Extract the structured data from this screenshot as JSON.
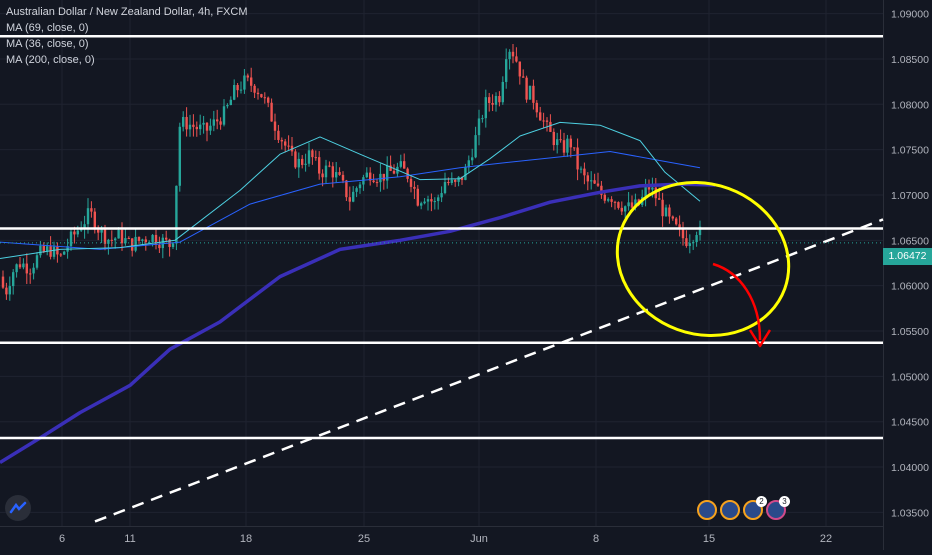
{
  "legend": {
    "title": "Australian Dollar / New Zealand Dollar, 4h, FXCM",
    "ma1": "MA (69, close, 0)",
    "ma2": "MA (36, close, 0)",
    "ma3": "MA (200, close, 0)"
  },
  "current_price_label": "1.06472",
  "avatar_counts": [
    "2",
    "3"
  ],
  "colors": {
    "background": "#131722",
    "bull": "#26a69a",
    "bear": "#ef5350",
    "ma69": "#2962ff",
    "ma36": "#4dd0e1",
    "ma200": "#3a2fb8",
    "levels": "#ffffff",
    "ellipse": "#ffff00",
    "arrow": "#ff0000"
  },
  "chart_data": {
    "type": "candlestick",
    "title": "Australian Dollar / New Zealand Dollar, 4h, FXCM",
    "xlabel": "",
    "ylabel": "",
    "ylim": [
      1.0335,
      1.0915
    ],
    "grid": true,
    "last_price": 1.06472,
    "x_tick_labels": [
      "6",
      "11",
      "18",
      "25",
      "Jun",
      "8",
      "15",
      "22"
    ],
    "y_tick_labels": [
      "1.09000",
      "1.08500",
      "1.08000",
      "1.07500",
      "1.07000",
      "1.06500",
      "1.06000",
      "1.05500",
      "1.05000",
      "1.04500",
      "1.04000",
      "1.03500"
    ],
    "price_path": [
      [
        0,
        1.061
      ],
      [
        5,
        1.059
      ],
      [
        12,
        1.0615
      ],
      [
        20,
        1.0625
      ],
      [
        30,
        1.062
      ],
      [
        40,
        1.0635
      ],
      [
        50,
        1.064
      ],
      [
        60,
        1.063
      ],
      [
        70,
        1.065
      ],
      [
        80,
        1.0665
      ],
      [
        90,
        1.068
      ],
      [
        100,
        1.066
      ],
      [
        110,
        1.065
      ],
      [
        120,
        1.0655
      ],
      [
        130,
        1.0645
      ],
      [
        140,
        1.065
      ],
      [
        150,
        1.0655
      ],
      [
        160,
        1.065
      ],
      [
        170,
        1.0645
      ],
      [
        175,
        1.066
      ],
      [
        178,
        1.0775
      ],
      [
        185,
        1.078
      ],
      [
        195,
        1.0775
      ],
      [
        205,
        1.077
      ],
      [
        215,
        1.078
      ],
      [
        225,
        1.079
      ],
      [
        235,
        1.0815
      ],
      [
        245,
        1.0825
      ],
      [
        255,
        1.082
      ],
      [
        262,
        1.081
      ],
      [
        270,
        1.079
      ],
      [
        278,
        1.077
      ],
      [
        285,
        1.0755
      ],
      [
        292,
        1.074
      ],
      [
        300,
        1.0735
      ],
      [
        310,
        1.0745
      ],
      [
        320,
        1.0725
      ],
      [
        330,
        1.073
      ],
      [
        340,
        1.0715
      ],
      [
        350,
        1.0695
      ],
      [
        360,
        1.0715
      ],
      [
        370,
        1.0725
      ],
      [
        380,
        1.072
      ],
      [
        390,
        1.0725
      ],
      [
        400,
        1.073
      ],
      [
        410,
        1.072
      ],
      [
        418,
        1.0695
      ],
      [
        425,
        1.07
      ],
      [
        435,
        1.069
      ],
      [
        445,
        1.0715
      ],
      [
        455,
        1.071
      ],
      [
        465,
        1.0725
      ],
      [
        475,
        1.076
      ],
      [
        485,
        1.08
      ],
      [
        492,
        1.0805
      ],
      [
        500,
        1.081
      ],
      [
        507,
        1.0865
      ],
      [
        512,
        1.086
      ],
      [
        518,
        1.0845
      ],
      [
        525,
        1.0815
      ],
      [
        532,
        1.081
      ],
      [
        540,
        1.079
      ],
      [
        548,
        1.077
      ],
      [
        555,
        1.076
      ],
      [
        562,
        1.075
      ],
      [
        570,
        1.076
      ],
      [
        578,
        1.073
      ],
      [
        586,
        1.0715
      ],
      [
        594,
        1.071
      ],
      [
        602,
        1.07
      ],
      [
        610,
        1.07
      ],
      [
        620,
        1.069
      ],
      [
        630,
        1.0685
      ],
      [
        640,
        1.069
      ],
      [
        648,
        1.071
      ],
      [
        655,
        1.07
      ],
      [
        662,
        1.0685
      ],
      [
        670,
        1.067
      ],
      [
        678,
        1.066
      ],
      [
        685,
        1.065
      ],
      [
        692,
        1.0655
      ],
      [
        698,
        1.0665
      ],
      [
        703,
        1.0647
      ]
    ],
    "moving_averages": [
      {
        "name": "MA (69, close, 0)",
        "points": [
          [
            0,
            1.0648
          ],
          [
            100,
            1.064
          ],
          [
            180,
            1.0648
          ],
          [
            250,
            1.069
          ],
          [
            320,
            1.0712
          ],
          [
            400,
            1.072
          ],
          [
            460,
            1.073
          ],
          [
            500,
            1.0735
          ],
          [
            560,
            1.0742
          ],
          [
            610,
            1.0748
          ],
          [
            650,
            1.074
          ],
          [
            700,
            1.073
          ]
        ]
      },
      {
        "name": "MA (36, close, 0)",
        "points": [
          [
            0,
            1.063
          ],
          [
            60,
            1.064
          ],
          [
            120,
            1.0642
          ],
          [
            175,
            1.065
          ],
          [
            240,
            1.0705
          ],
          [
            280,
            1.0745
          ],
          [
            320,
            1.0764
          ],
          [
            360,
            1.0745
          ],
          [
            420,
            1.0717
          ],
          [
            460,
            1.0718
          ],
          [
            490,
            1.074
          ],
          [
            520,
            1.0765
          ],
          [
            560,
            1.078
          ],
          [
            600,
            1.0777
          ],
          [
            640,
            1.076
          ],
          [
            665,
            1.0725
          ],
          [
            700,
            1.0693
          ]
        ]
      },
      {
        "name": "MA (200, close, 0)",
        "points": [
          [
            0,
            1.0405
          ],
          [
            40,
            1.0432
          ],
          [
            80,
            1.046
          ],
          [
            130,
            1.049
          ],
          [
            170,
            1.053
          ],
          [
            220,
            1.056
          ],
          [
            280,
            1.061
          ],
          [
            340,
            1.064
          ],
          [
            400,
            1.065
          ],
          [
            450,
            1.066
          ],
          [
            500,
            1.0675
          ],
          [
            550,
            1.0692
          ],
          [
            600,
            1.0703
          ],
          [
            640,
            1.071
          ],
          [
            680,
            1.0712
          ],
          [
            715,
            1.0711
          ]
        ]
      }
    ],
    "horizontal_levels": [
      1.0875,
      1.0663,
      1.0537,
      1.0432
    ],
    "trendline": {
      "x": [
        95,
        883
      ],
      "y": [
        1.034,
        1.0673
      ],
      "style": "dashed"
    },
    "annotations": [
      "ellipse around latest candles",
      "red arrow pointing down"
    ]
  }
}
